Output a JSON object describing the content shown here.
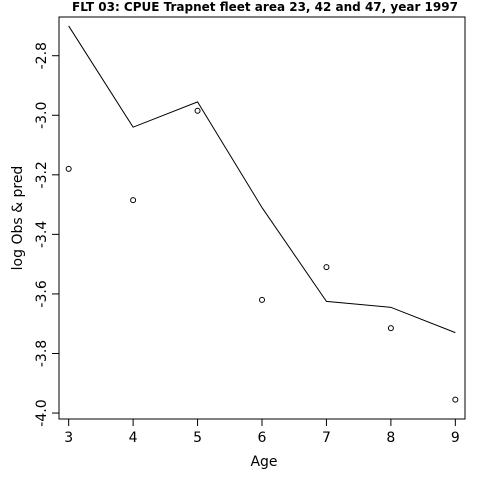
{
  "chart_data": {
    "type": "line",
    "title": "FLT 03: CPUE Trapnet fleet area 23, 42 and 47, year 1997",
    "xlabel": "Age",
    "ylabel": "log Obs & pred",
    "x": [
      3,
      4,
      5,
      6,
      7,
      8,
      9
    ],
    "xticks": [
      "3",
      "4",
      "5",
      "6",
      "7",
      "8",
      "9"
    ],
    "yticks": [
      "-2.8",
      "-3.0",
      "-3.2",
      "-3.4",
      "-3.6",
      "-3.8",
      "-4.0"
    ],
    "yticks_values": [
      -2.8,
      -3.0,
      -3.2,
      -3.4,
      -3.6,
      -3.8,
      -4.0
    ],
    "xlim": [
      2.85,
      9.15
    ],
    "ylim": [
      -4.02,
      -2.67
    ],
    "grid": false,
    "series": [
      {
        "role": "predicted",
        "style": "line",
        "color": "#000000",
        "values": [
          -2.7,
          -3.04,
          -2.955,
          -3.31,
          -3.625,
          -3.645,
          -3.73
        ]
      },
      {
        "role": "observed",
        "style": "points",
        "marker": "open-circle",
        "color": "#000000",
        "values": [
          -3.18,
          -3.285,
          -2.985,
          -3.62,
          -3.51,
          -3.715,
          -3.955
        ]
      }
    ]
  }
}
